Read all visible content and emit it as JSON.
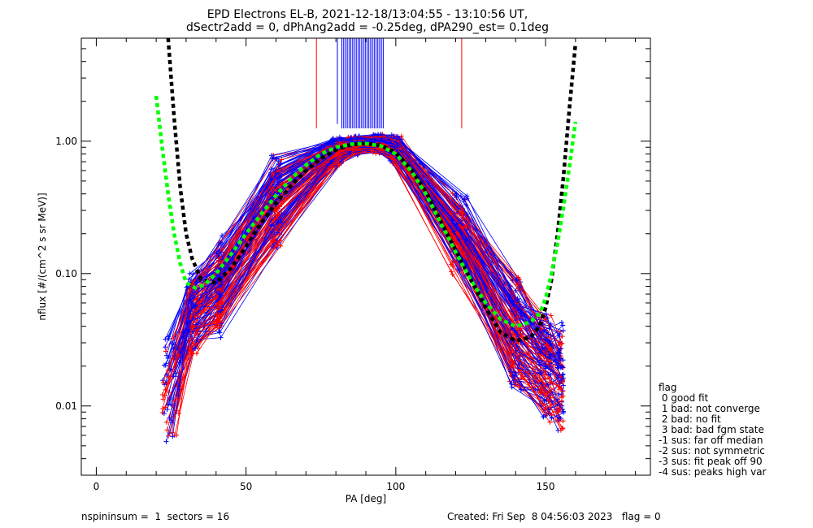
{
  "chart_data": {
    "type": "line",
    "title_lines": [
      "EPD Electrons EL-B, 2021-12-18/13:04:55 - 13:10:56 UT,",
      "dSectr2add = 0, dPhAng2add = -0.25deg, dPA290_est=   0.1deg"
    ],
    "xlabel": "PA [deg]",
    "ylabel": "nflux [#/(cm^2 s sr MeV)]",
    "xlim": [
      -5,
      185
    ],
    "ylim": [
      0.003,
      6.0
    ],
    "yscale": "log",
    "x_ticks": [
      "0",
      "50",
      "100",
      "150"
    ],
    "x_tick_values": [
      0,
      50,
      100,
      150
    ],
    "y_ticks": [
      "0.01",
      "0.10",
      "1.00"
    ],
    "y_tick_values": [
      0.01,
      0.1,
      1.0
    ],
    "colors": {
      "red_series": "#ff0000",
      "blue_series": "#0000ff",
      "model_black": "#000000",
      "model_green": "#00ff00"
    },
    "series": [
      {
        "style": "thick-dashed-black",
        "x": [
          24,
          26,
          28,
          30,
          32,
          35,
          40,
          45,
          50,
          55,
          60,
          65,
          70,
          75,
          80,
          85,
          90,
          95,
          100,
          105,
          110,
          115,
          120,
          125,
          130,
          135,
          140,
          145,
          148,
          150,
          152,
          154,
          156,
          158,
          160
        ],
        "y": [
          6.0,
          1.5,
          0.45,
          0.2,
          0.13,
          0.09,
          0.085,
          0.11,
          0.16,
          0.24,
          0.34,
          0.46,
          0.6,
          0.74,
          0.86,
          0.94,
          0.96,
          0.93,
          0.82,
          0.62,
          0.42,
          0.25,
          0.15,
          0.09,
          0.055,
          0.036,
          0.031,
          0.033,
          0.04,
          0.055,
          0.09,
          0.2,
          0.55,
          1.8,
          5.5
        ]
      },
      {
        "style": "thick-dashed-green",
        "x": [
          20,
          22,
          24,
          26,
          28,
          30,
          33,
          36,
          40,
          45,
          50,
          55,
          60,
          65,
          70,
          75,
          80,
          85,
          90,
          95,
          100,
          105,
          110,
          115,
          120,
          125,
          130,
          135,
          140,
          145,
          148,
          150,
          152,
          154,
          156,
          158,
          160
        ],
        "y": [
          2.2,
          0.9,
          0.4,
          0.2,
          0.12,
          0.085,
          0.078,
          0.082,
          0.1,
          0.14,
          0.2,
          0.28,
          0.39,
          0.52,
          0.66,
          0.8,
          0.9,
          0.95,
          0.96,
          0.92,
          0.8,
          0.6,
          0.4,
          0.24,
          0.145,
          0.09,
          0.06,
          0.045,
          0.04,
          0.043,
          0.05,
          0.065,
          0.1,
          0.17,
          0.32,
          0.65,
          1.4
        ]
      }
    ],
    "legend": {
      "placement": "right",
      "title": "flag",
      "entries": [
        " 0 good fit",
        " 1 bad: not converge",
        " 2 bad: no fit",
        " 3 bad: bad fgm state",
        "-1 sus: far off median",
        "-2 sus: not symmetric",
        "-3 sus: fit peak off 90",
        "-4 sus: peaks high var"
      ]
    },
    "grid": false
  },
  "footer": {
    "left": "nspininsum =  1  sectors = 16",
    "right": "Created: Fri Sep  8 04:56:03 2023   flag = 0"
  }
}
